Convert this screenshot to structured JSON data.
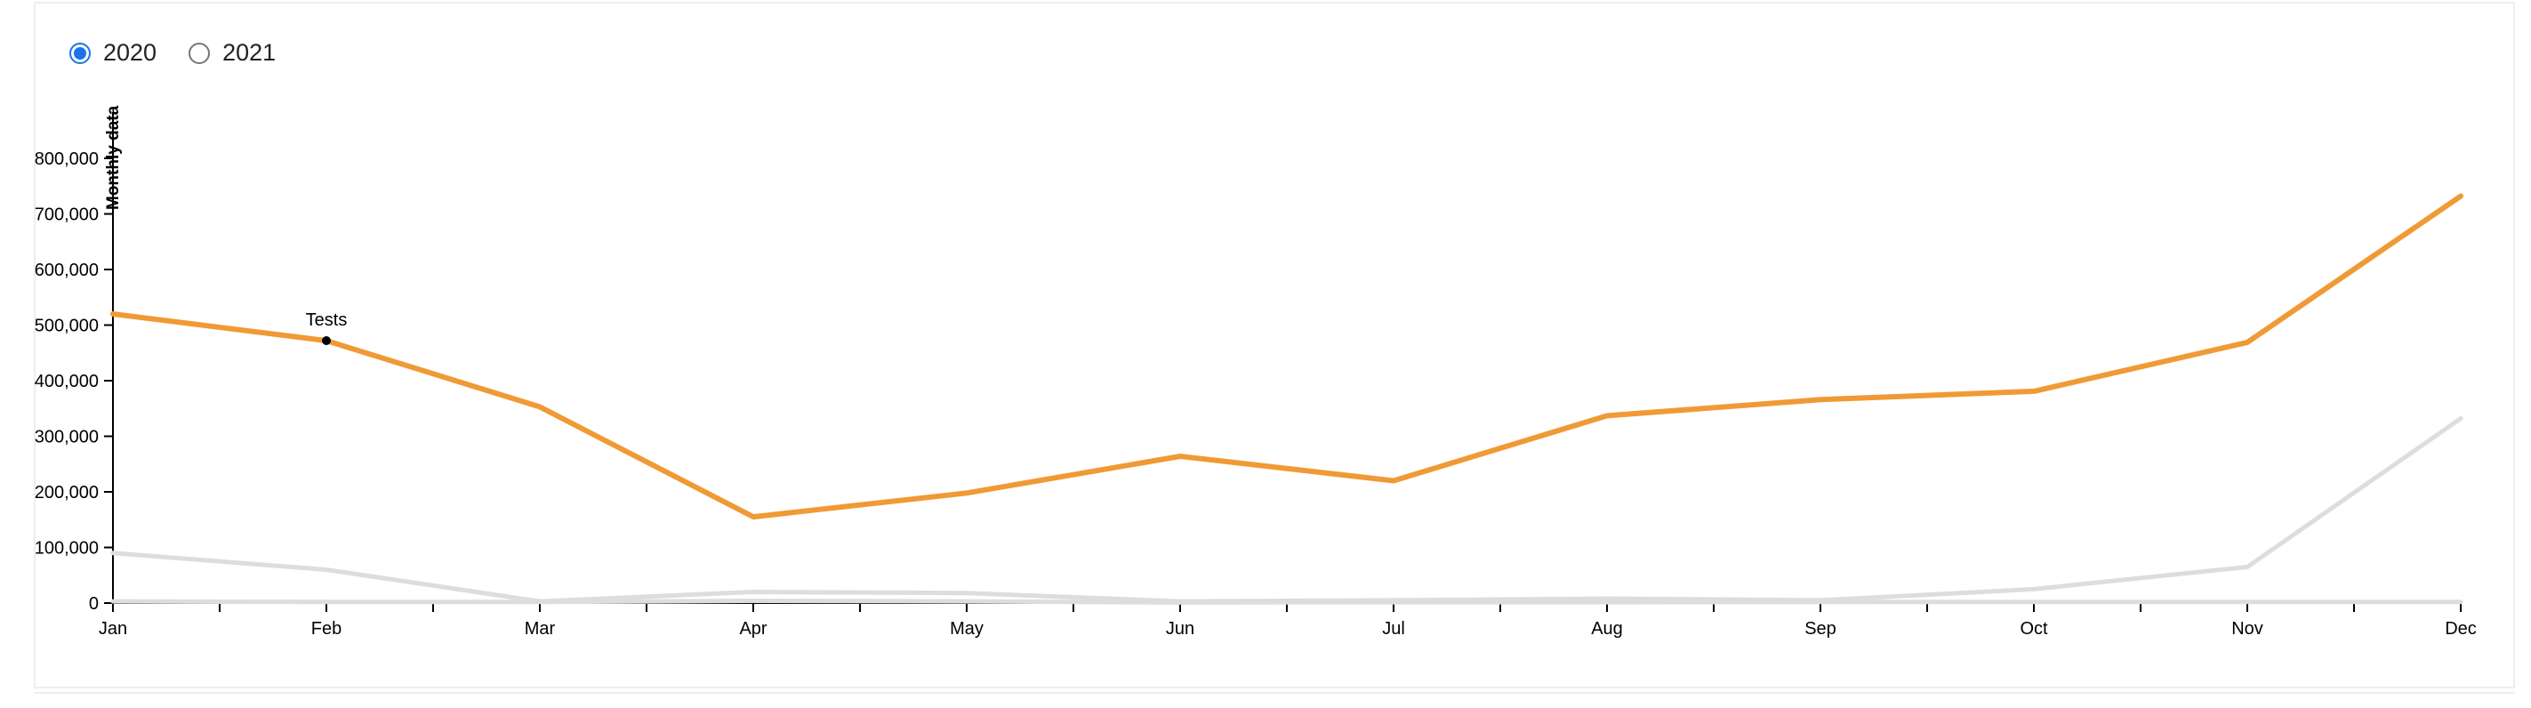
{
  "year_selector": {
    "options": [
      {
        "label": "2020",
        "checked": true
      },
      {
        "label": "2021",
        "checked": false
      }
    ]
  },
  "chart_data": {
    "type": "line",
    "categories": [
      "Jan",
      "Feb",
      "Mar",
      "Apr",
      "May",
      "Jun",
      "Jul",
      "Aug",
      "Sep",
      "Oct",
      "Nov",
      "Dec"
    ],
    "ylabel": "Monthly data",
    "ylim": [
      0,
      800000
    ],
    "yticks": [
      0,
      100000,
      200000,
      300000,
      400000,
      500000,
      600000,
      700000,
      800000
    ],
    "ytick_labels": [
      "0",
      "100,000",
      "200,000",
      "300,000",
      "400,000",
      "500,000",
      "600,000",
      "700,000",
      "800,000"
    ],
    "grid": false,
    "series": [
      {
        "color": "#f09a36",
        "values": [
          520000,
          472000,
          353000,
          155000,
          198000,
          264000,
          220000,
          337000,
          366000,
          381000,
          469000,
          732000
        ]
      },
      {
        "color": "#dddddd",
        "values": [
          90000,
          60000,
          3000,
          20000,
          18000,
          3000,
          5000,
          8000,
          5000,
          25000,
          65000,
          332000
        ]
      },
      {
        "color": "#dddddd",
        "values": [
          3000,
          2000,
          2000,
          4000,
          3000,
          1000,
          1500,
          1500,
          2000,
          2000,
          2000,
          2000
        ]
      }
    ],
    "annotation": {
      "label": "Tests",
      "category": "Feb",
      "value": 472000
    }
  }
}
